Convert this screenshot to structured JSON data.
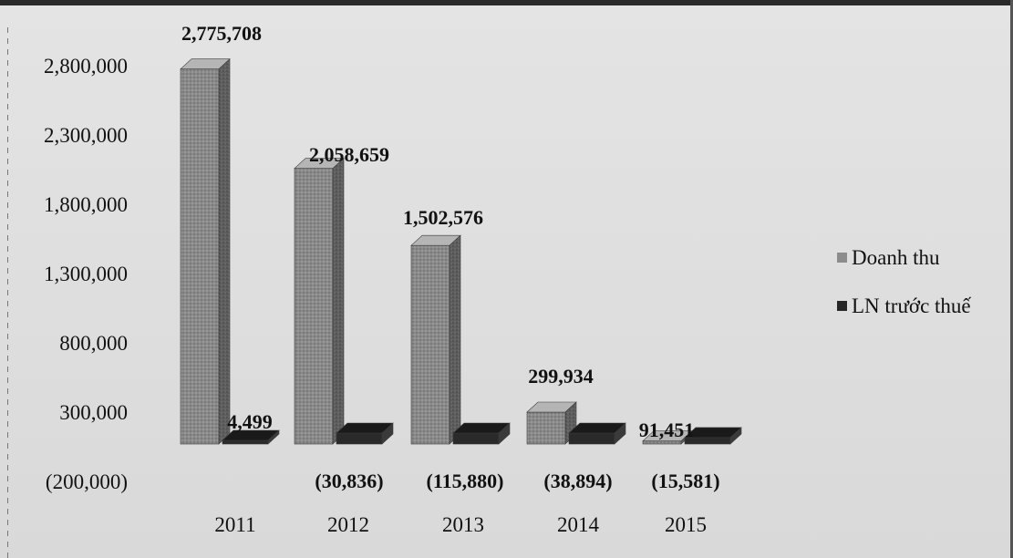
{
  "chart_data": {
    "type": "bar",
    "categories": [
      "2011",
      "2012",
      "2013",
      "2014",
      "2015"
    ],
    "series": [
      {
        "name": "Doanh thu",
        "values": [
          2775708,
          2058659,
          1502576,
          299934,
          91451
        ],
        "labels": [
          "2,775,708",
          "2,058,659",
          "1,502,576",
          "299,934",
          "91,451"
        ]
      },
      {
        "name": "LN trước thuế",
        "values": [
          4499,
          -30836,
          -115880,
          -38894,
          -15581
        ],
        "labels": [
          "4,499",
          "(30,836)",
          "(115,880)",
          "(38,894)",
          "(15,581)"
        ]
      }
    ],
    "y_ticks": [
      {
        "value": 2800000,
        "label": "2,800,000"
      },
      {
        "value": 2300000,
        "label": "2,300,000"
      },
      {
        "value": 1800000,
        "label": "1,800,000"
      },
      {
        "value": 1300000,
        "label": "1,300,000"
      },
      {
        "value": 800000,
        "label": "800,000"
      },
      {
        "value": 300000,
        "label": "300,000"
      },
      {
        "value": -200000,
        "label": "(200,000)"
      }
    ],
    "ylim": [
      -200000,
      2900000
    ],
    "title": "",
    "xlabel": "",
    "ylabel": "",
    "legend_position": "right",
    "grid": false,
    "colors": {
      "doanh_thu": "#8c8c8c",
      "ln_truoc_thue": "#262626"
    }
  }
}
